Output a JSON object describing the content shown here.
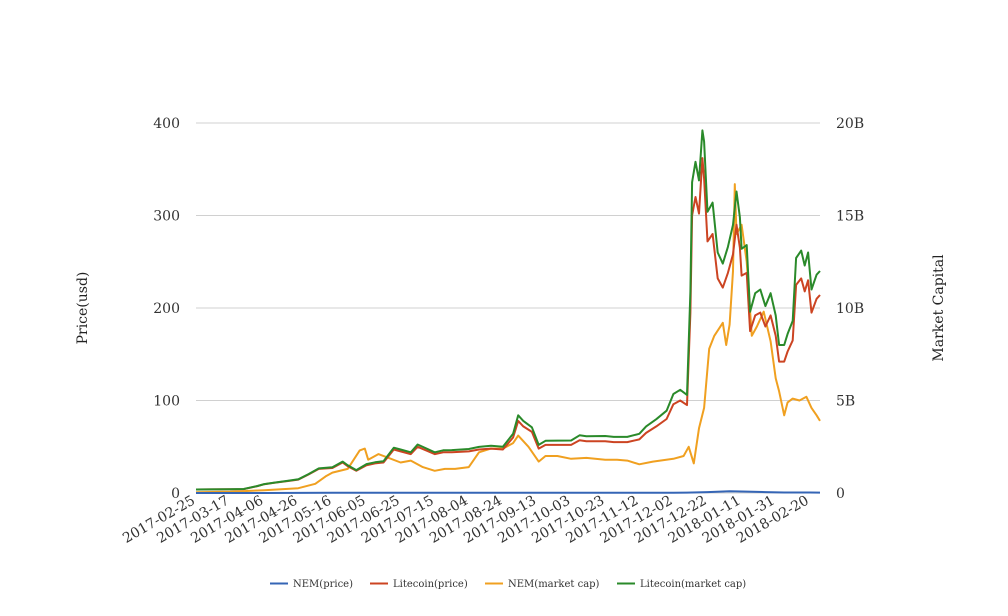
{
  "chart_data": {
    "type": "line",
    "title": "",
    "ylabel_left": "Price(usd)",
    "ylabel_right": "Market Capital",
    "ylim_left": [
      0,
      400
    ],
    "ylim_right": [
      0,
      20000000000
    ],
    "yticks_left": [
      "0",
      "100",
      "200",
      "300",
      "400"
    ],
    "yticks_right": [
      "0",
      "5B",
      "10B",
      "15B",
      "20B"
    ],
    "xlim": [
      "2017-02-25",
      "2018-02-26"
    ],
    "xticks": [
      "2017-02-25",
      "2017-03-17",
      "2017-04-06",
      "2017-04-26",
      "2017-05-16",
      "2017-06-05",
      "2017-06-25",
      "2017-07-15",
      "2017-08-04",
      "2017-08-24",
      "2017-09-13",
      "2017-10-03",
      "2017-10-23",
      "2017-11-12",
      "2017-12-02",
      "2017-12-22",
      "2018-01-11",
      "2018-01-31",
      "2018-02-20"
    ],
    "grid": "horizontal",
    "legend_position": "bottom",
    "series": [
      {
        "name": "NEM(price)",
        "axis": "left",
        "color": "#3565b5",
        "points": [
          [
            "2017-02-25",
            0.005
          ],
          [
            "2017-03-15",
            0.008
          ],
          [
            "2017-04-06",
            0.02
          ],
          [
            "2017-04-26",
            0.06
          ],
          [
            "2017-05-16",
            0.24
          ],
          [
            "2017-06-05",
            0.28
          ],
          [
            "2017-06-25",
            0.22
          ],
          [
            "2017-07-15",
            0.17
          ],
          [
            "2017-08-04",
            0.25
          ],
          [
            "2017-08-24",
            0.32
          ],
          [
            "2017-09-13",
            0.23
          ],
          [
            "2017-10-03",
            0.21
          ],
          [
            "2017-10-23",
            0.19
          ],
          [
            "2017-11-12",
            0.18
          ],
          [
            "2017-12-02",
            0.27
          ],
          [
            "2017-12-10",
            0.44
          ],
          [
            "2017-12-22",
            0.95
          ],
          [
            "2018-01-04",
            1.87
          ],
          [
            "2018-01-11",
            1.6
          ],
          [
            "2018-01-25",
            1.0
          ],
          [
            "2018-02-05",
            0.55
          ],
          [
            "2018-02-20",
            0.52
          ],
          [
            "2018-02-26",
            0.44
          ]
        ]
      },
      {
        "name": "Litecoin(price)",
        "axis": "left",
        "color": "#cc4422",
        "points": [
          [
            "2017-02-25",
            3.8
          ],
          [
            "2017-03-05",
            3.9
          ],
          [
            "2017-03-17",
            4.0
          ],
          [
            "2017-03-25",
            4.2
          ],
          [
            "2017-04-02",
            7.5
          ],
          [
            "2017-04-06",
            9.5
          ],
          [
            "2017-04-12",
            11
          ],
          [
            "2017-04-20",
            13
          ],
          [
            "2017-04-26",
            14.5
          ],
          [
            "2017-05-02",
            20
          ],
          [
            "2017-05-08",
            26
          ],
          [
            "2017-05-16",
            27
          ],
          [
            "2017-05-22",
            33
          ],
          [
            "2017-05-25",
            29
          ],
          [
            "2017-05-30",
            24
          ],
          [
            "2017-06-05",
            30
          ],
          [
            "2017-06-10",
            32
          ],
          [
            "2017-06-15",
            33
          ],
          [
            "2017-06-21",
            47
          ],
          [
            "2017-06-25",
            45
          ],
          [
            "2017-07-01",
            42
          ],
          [
            "2017-07-05",
            50
          ],
          [
            "2017-07-10",
            46
          ],
          [
            "2017-07-15",
            42
          ],
          [
            "2017-07-20",
            44
          ],
          [
            "2017-07-25",
            44
          ],
          [
            "2017-08-04",
            45
          ],
          [
            "2017-08-10",
            47
          ],
          [
            "2017-08-17",
            48
          ],
          [
            "2017-08-24",
            47
          ],
          [
            "2017-08-30",
            60
          ],
          [
            "2017-09-02",
            78
          ],
          [
            "2017-09-05",
            72
          ],
          [
            "2017-09-10",
            66
          ],
          [
            "2017-09-14",
            48
          ],
          [
            "2017-09-18",
            52
          ],
          [
            "2017-09-25",
            52
          ],
          [
            "2017-10-03",
            52
          ],
          [
            "2017-10-08",
            57
          ],
          [
            "2017-10-12",
            56
          ],
          [
            "2017-10-23",
            56
          ],
          [
            "2017-10-28",
            55
          ],
          [
            "2017-11-05",
            55
          ],
          [
            "2017-11-12",
            58
          ],
          [
            "2017-11-16",
            65
          ],
          [
            "2017-11-22",
            72
          ],
          [
            "2017-11-28",
            80
          ],
          [
            "2017-12-02",
            96
          ],
          [
            "2017-12-06",
            100
          ],
          [
            "2017-12-10",
            95
          ],
          [
            "2017-12-12",
            195
          ],
          [
            "2017-12-13",
            300
          ],
          [
            "2017-12-15",
            320
          ],
          [
            "2017-12-17",
            302
          ],
          [
            "2017-12-19",
            362
          ],
          [
            "2017-12-20",
            340
          ],
          [
            "2017-12-22",
            272
          ],
          [
            "2017-12-25",
            280
          ],
          [
            "2017-12-28",
            232
          ],
          [
            "2017-12-31",
            222
          ],
          [
            "2018-01-03",
            238
          ],
          [
            "2018-01-06",
            258
          ],
          [
            "2018-01-08",
            290
          ],
          [
            "2018-01-10",
            265
          ],
          [
            "2018-01-11",
            235
          ],
          [
            "2018-01-14",
            238
          ],
          [
            "2018-01-16",
            175
          ],
          [
            "2018-01-19",
            192
          ],
          [
            "2018-01-22",
            195
          ],
          [
            "2018-01-25",
            180
          ],
          [
            "2018-01-28",
            192
          ],
          [
            "2018-01-31",
            170
          ],
          [
            "2018-02-02",
            142
          ],
          [
            "2018-02-05",
            142
          ],
          [
            "2018-02-07",
            153
          ],
          [
            "2018-02-10",
            165
          ],
          [
            "2018-02-12",
            225
          ],
          [
            "2018-02-15",
            232
          ],
          [
            "2018-02-17",
            218
          ],
          [
            "2018-02-19",
            230
          ],
          [
            "2018-02-21",
            195
          ],
          [
            "2018-02-24",
            210
          ],
          [
            "2018-02-26",
            214
          ]
        ]
      },
      {
        "name": "NEM(market cap)",
        "axis": "right",
        "color": "#f0a020",
        "points": [
          [
            "2017-02-25",
            45000000
          ],
          [
            "2017-03-17",
            70000000
          ],
          [
            "2017-04-06",
            150000000
          ],
          [
            "2017-04-26",
            260000000
          ],
          [
            "2017-05-06",
            500000000
          ],
          [
            "2017-05-12",
            900000000
          ],
          [
            "2017-05-16",
            1100000000
          ],
          [
            "2017-05-25",
            1300000000
          ],
          [
            "2017-06-01",
            2300000000
          ],
          [
            "2017-06-04",
            2400000000
          ],
          [
            "2017-06-06",
            1800000000
          ],
          [
            "2017-06-12",
            2100000000
          ],
          [
            "2017-06-18",
            1900000000
          ],
          [
            "2017-06-25",
            1650000000
          ],
          [
            "2017-07-01",
            1750000000
          ],
          [
            "2017-07-08",
            1400000000
          ],
          [
            "2017-07-15",
            1200000000
          ],
          [
            "2017-07-21",
            1300000000
          ],
          [
            "2017-07-27",
            1300000000
          ],
          [
            "2017-08-04",
            1400000000
          ],
          [
            "2017-08-10",
            2200000000
          ],
          [
            "2017-08-17",
            2400000000
          ],
          [
            "2017-08-24",
            2400000000
          ],
          [
            "2017-08-30",
            2700000000
          ],
          [
            "2017-09-02",
            3100000000
          ],
          [
            "2017-09-08",
            2500000000
          ],
          [
            "2017-09-14",
            1700000000
          ],
          [
            "2017-09-18",
            2000000000
          ],
          [
            "2017-09-25",
            2000000000
          ],
          [
            "2017-10-03",
            1850000000
          ],
          [
            "2017-10-12",
            1900000000
          ],
          [
            "2017-10-23",
            1800000000
          ],
          [
            "2017-10-30",
            1800000000
          ],
          [
            "2017-11-05",
            1750000000
          ],
          [
            "2017-11-12",
            1550000000
          ],
          [
            "2017-11-20",
            1700000000
          ],
          [
            "2017-12-02",
            1850000000
          ],
          [
            "2017-12-08",
            2000000000
          ],
          [
            "2017-12-11",
            2500000000
          ],
          [
            "2017-12-14",
            1600000000
          ],
          [
            "2017-12-17",
            3500000000
          ],
          [
            "2017-12-20",
            4600000000
          ],
          [
            "2017-12-23",
            7800000000
          ],
          [
            "2017-12-26",
            8500000000
          ],
          [
            "2017-12-31",
            9200000000
          ],
          [
            "2018-01-02",
            8000000000
          ],
          [
            "2018-01-04",
            9100000000
          ],
          [
            "2018-01-06",
            12000000000
          ],
          [
            "2018-01-07",
            16700000000
          ],
          [
            "2018-01-08",
            14000000000
          ],
          [
            "2018-01-11",
            14500000000
          ],
          [
            "2018-01-14",
            12500000000
          ],
          [
            "2018-01-17",
            8500000000
          ],
          [
            "2018-01-20",
            9000000000
          ],
          [
            "2018-01-24",
            9800000000
          ],
          [
            "2018-01-28",
            8200000000
          ],
          [
            "2018-01-31",
            6200000000
          ],
          [
            "2018-02-02",
            5500000000
          ],
          [
            "2018-02-05",
            4200000000
          ],
          [
            "2018-02-07",
            4900000000
          ],
          [
            "2018-02-10",
            5100000000
          ],
          [
            "2018-02-14",
            5000000000
          ],
          [
            "2018-02-18",
            5200000000
          ],
          [
            "2018-02-21",
            4600000000
          ],
          [
            "2018-02-24",
            4200000000
          ],
          [
            "2018-02-26",
            3900000000
          ]
        ]
      },
      {
        "name": "Litecoin(market cap)",
        "axis": "right",
        "color": "#2a8a2a",
        "points": [
          [
            "2017-02-25",
            190000000
          ],
          [
            "2017-03-05",
            195000000
          ],
          [
            "2017-03-17",
            205000000
          ],
          [
            "2017-03-25",
            215000000
          ],
          [
            "2017-04-02",
            380000000
          ],
          [
            "2017-04-06",
            480000000
          ],
          [
            "2017-04-12",
            560000000
          ],
          [
            "2017-04-20",
            660000000
          ],
          [
            "2017-04-26",
            740000000
          ],
          [
            "2017-05-02",
            1020000000
          ],
          [
            "2017-05-08",
            1330000000
          ],
          [
            "2017-05-16",
            1390000000
          ],
          [
            "2017-05-22",
            1700000000
          ],
          [
            "2017-05-25",
            1500000000
          ],
          [
            "2017-05-30",
            1240000000
          ],
          [
            "2017-06-05",
            1560000000
          ],
          [
            "2017-06-10",
            1660000000
          ],
          [
            "2017-06-15",
            1720000000
          ],
          [
            "2017-06-21",
            2450000000
          ],
          [
            "2017-06-25",
            2350000000
          ],
          [
            "2017-07-01",
            2200000000
          ],
          [
            "2017-07-05",
            2620000000
          ],
          [
            "2017-07-10",
            2410000000
          ],
          [
            "2017-07-15",
            2200000000
          ],
          [
            "2017-07-20",
            2310000000
          ],
          [
            "2017-07-25",
            2320000000
          ],
          [
            "2017-08-04",
            2380000000
          ],
          [
            "2017-08-10",
            2490000000
          ],
          [
            "2017-08-17",
            2550000000
          ],
          [
            "2017-08-24",
            2500000000
          ],
          [
            "2017-08-30",
            3200000000
          ],
          [
            "2017-09-02",
            4200000000
          ],
          [
            "2017-09-05",
            3900000000
          ],
          [
            "2017-09-10",
            3550000000
          ],
          [
            "2017-09-14",
            2600000000
          ],
          [
            "2017-09-18",
            2820000000
          ],
          [
            "2017-09-25",
            2830000000
          ],
          [
            "2017-10-03",
            2840000000
          ],
          [
            "2017-10-08",
            3120000000
          ],
          [
            "2017-10-12",
            3070000000
          ],
          [
            "2017-10-23",
            3080000000
          ],
          [
            "2017-10-28",
            3030000000
          ],
          [
            "2017-11-05",
            3030000000
          ],
          [
            "2017-11-12",
            3200000000
          ],
          [
            "2017-11-16",
            3600000000
          ],
          [
            "2017-11-22",
            3990000000
          ],
          [
            "2017-11-28",
            4450000000
          ],
          [
            "2017-12-02",
            5350000000
          ],
          [
            "2017-12-06",
            5580000000
          ],
          [
            "2017-12-10",
            5300000000
          ],
          [
            "2017-12-12",
            10900000000
          ],
          [
            "2017-12-13",
            16800000000
          ],
          [
            "2017-12-15",
            17900000000
          ],
          [
            "2017-12-17",
            16900000000
          ],
          [
            "2017-12-19",
            19600000000
          ],
          [
            "2017-12-20",
            19000000000
          ],
          [
            "2017-12-22",
            15200000000
          ],
          [
            "2017-12-25",
            15700000000
          ],
          [
            "2017-12-28",
            13000000000
          ],
          [
            "2017-12-31",
            12400000000
          ],
          [
            "2018-01-03",
            13300000000
          ],
          [
            "2018-01-06",
            14500000000
          ],
          [
            "2018-01-08",
            16300000000
          ],
          [
            "2018-01-10",
            14900000000
          ],
          [
            "2018-01-11",
            13200000000
          ],
          [
            "2018-01-14",
            13400000000
          ],
          [
            "2018-01-16",
            9800000000
          ],
          [
            "2018-01-19",
            10800000000
          ],
          [
            "2018-01-22",
            11000000000
          ],
          [
            "2018-01-25",
            10100000000
          ],
          [
            "2018-01-28",
            10800000000
          ],
          [
            "2018-01-31",
            9600000000
          ],
          [
            "2018-02-02",
            8000000000
          ],
          [
            "2018-02-05",
            8000000000
          ],
          [
            "2018-02-07",
            8600000000
          ],
          [
            "2018-02-10",
            9300000000
          ],
          [
            "2018-02-12",
            12700000000
          ],
          [
            "2018-02-15",
            13100000000
          ],
          [
            "2018-02-17",
            12300000000
          ],
          [
            "2018-02-19",
            13000000000
          ],
          [
            "2018-02-21",
            11000000000
          ],
          [
            "2018-02-24",
            11800000000
          ],
          [
            "2018-02-26",
            12000000000
          ]
        ]
      }
    ]
  }
}
